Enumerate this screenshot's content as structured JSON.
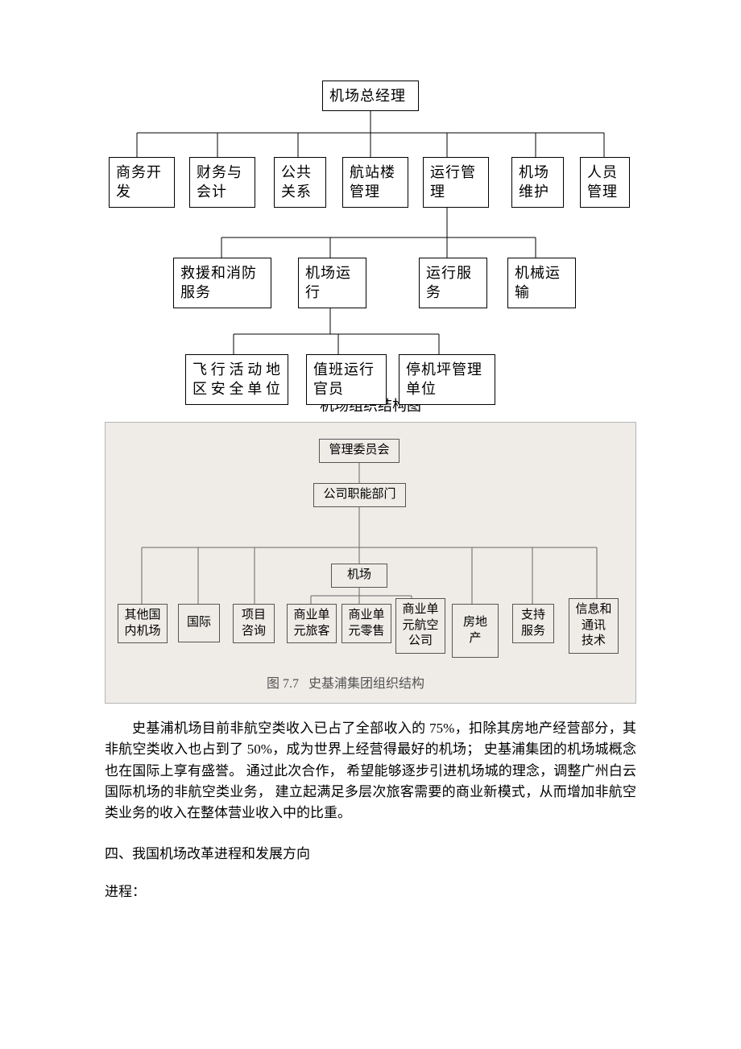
{
  "diagram1": {
    "type": "tree",
    "background_color": "#ffffff",
    "border_color": "#000000",
    "fontsize": 18,
    "root": {
      "label": "机场总经理"
    },
    "level1": [
      {
        "label": "商务开\n发"
      },
      {
        "label": "财务与\n会计"
      },
      {
        "label": "公共\n关系"
      },
      {
        "label": "航站楼\n管理"
      },
      {
        "label": "运行管\n理"
      },
      {
        "label": "机场\n维护"
      },
      {
        "label": "人员\n管理"
      }
    ],
    "level2_parent_index": 4,
    "level2": [
      {
        "label": "救援和消防\n服务"
      },
      {
        "label": "机场运\n行"
      },
      {
        "label": "运行服\n务"
      },
      {
        "label": "机械运\n输"
      }
    ],
    "level3_parent_index": 1,
    "level3": [
      {
        "label": "飞行活动地\n区安全单位",
        "justify": true
      },
      {
        "label": "值班运行\n官员"
      },
      {
        "label": "停机坪管理\n单位"
      }
    ],
    "caption": "机场组织结构图"
  },
  "diagram2": {
    "type": "tree",
    "background_color": "#efece8",
    "border_color": "#555555",
    "fontsize": 15,
    "root": {
      "label": "管理委员会"
    },
    "mid": {
      "label": "公司职能部门"
    },
    "center": {
      "label": "机场"
    },
    "leaves": [
      {
        "label": "其他国\n内机场"
      },
      {
        "label": "国际"
      },
      {
        "label": "项目\n咨询"
      },
      {
        "label": "商业单\n元旅客"
      },
      {
        "label": "商业单\n元零售"
      },
      {
        "label": "商业单\n元航空\n公司"
      },
      {
        "label": "房地产"
      },
      {
        "label": "支持\n服务"
      },
      {
        "label": "信息和\n通讯\n技术"
      }
    ],
    "caption_prefix": "图 7.7",
    "caption": "史基浦集团组织结构"
  },
  "paragraph": "史基浦机场目前非航空类收入已占了全部收入的 75%，扣除其房地产经营部分，其非航空类收入也占到了 50%，成为世界上经营得最好的机场； 史基浦集团的机场城概念也在国际上享有盛誉。 通过此次合作， 希望能够逐步引进机场城的理念，调整广州白云国际机场的非航空类业务， 建立起满足多层次旅客需要的商业新模式，从而增加非航空类业务的收入在整体营业收入中的比重。",
  "heading4": "四、我国机场改革进程和发展方向",
  "heading5": "进程："
}
